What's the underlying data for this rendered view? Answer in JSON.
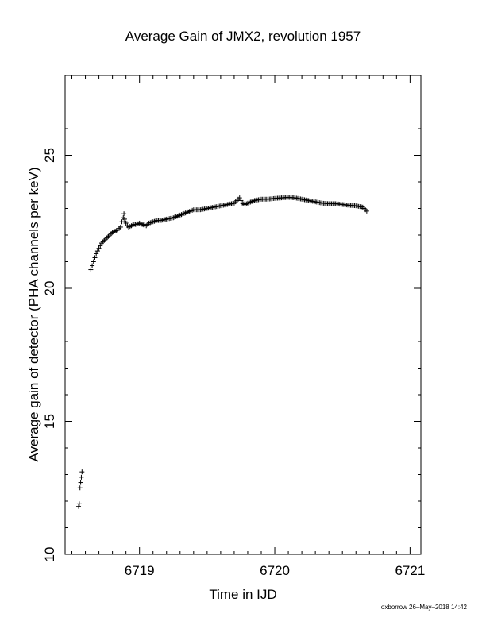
{
  "chart_data": {
    "type": "scatter",
    "title": "Average Gain of JMX2, revolution 1957",
    "xlabel": "Time in IJD",
    "ylabel": "Average gain of detector (PHA channels per keV)",
    "xlim": [
      6718.45,
      6721.08
    ],
    "ylim": [
      10,
      28
    ],
    "xticks": [
      "6719",
      "6720",
      "6721"
    ],
    "yticks": [
      "10",
      "15",
      "20",
      "25"
    ],
    "marker": "plus",
    "grid": false,
    "x": [
      6718.55,
      6718.555,
      6718.56,
      6718.565,
      6718.57,
      6718.575,
      6718.64,
      6718.65,
      6718.66,
      6718.67,
      6718.68,
      6718.7,
      6718.72,
      6718.75,
      6718.78,
      6718.8,
      6718.82,
      6718.84,
      6718.86,
      6718.87,
      6718.88,
      6718.885,
      6718.89,
      6718.895,
      6718.9,
      6718.91,
      6718.92,
      6718.94,
      6718.96,
      6718.98,
      6719.0,
      6719.02,
      6719.05,
      6719.07,
      6719.1,
      6719.13,
      6719.16,
      6719.2,
      6719.25,
      6719.3,
      6719.35,
      6719.4,
      6719.45,
      6719.5,
      6719.55,
      6719.6,
      6719.65,
      6719.7,
      6719.72,
      6719.74,
      6719.75,
      6719.76,
      6719.78,
      6719.8,
      6719.85,
      6719.9,
      6719.95,
      6720.0,
      6720.05,
      6720.1,
      6720.15,
      6720.2,
      6720.25,
      6720.3,
      6720.35,
      6720.4,
      6720.45,
      6720.5,
      6720.55,
      6720.6,
      6720.65,
      6720.68
    ],
    "y": [
      11.8,
      11.9,
      12.5,
      12.7,
      12.9,
      13.1,
      20.7,
      20.85,
      21.0,
      21.15,
      21.3,
      21.5,
      21.7,
      21.85,
      22.0,
      22.1,
      22.15,
      22.2,
      22.3,
      22.5,
      22.65,
      22.8,
      22.6,
      22.5,
      22.45,
      22.35,
      22.3,
      22.35,
      22.4,
      22.4,
      22.45,
      22.4,
      22.35,
      22.45,
      22.5,
      22.55,
      22.55,
      22.6,
      22.65,
      22.75,
      22.85,
      22.95,
      22.95,
      23.0,
      23.05,
      23.1,
      23.15,
      23.2,
      23.3,
      23.4,
      23.3,
      23.2,
      23.15,
      23.2,
      23.3,
      23.35,
      23.35,
      23.38,
      23.4,
      23.42,
      23.4,
      23.35,
      23.3,
      23.25,
      23.2,
      23.18,
      23.18,
      23.15,
      23.12,
      23.1,
      23.05,
      22.9
    ]
  },
  "footer": "oxborrow 26–May–2018 14:42"
}
